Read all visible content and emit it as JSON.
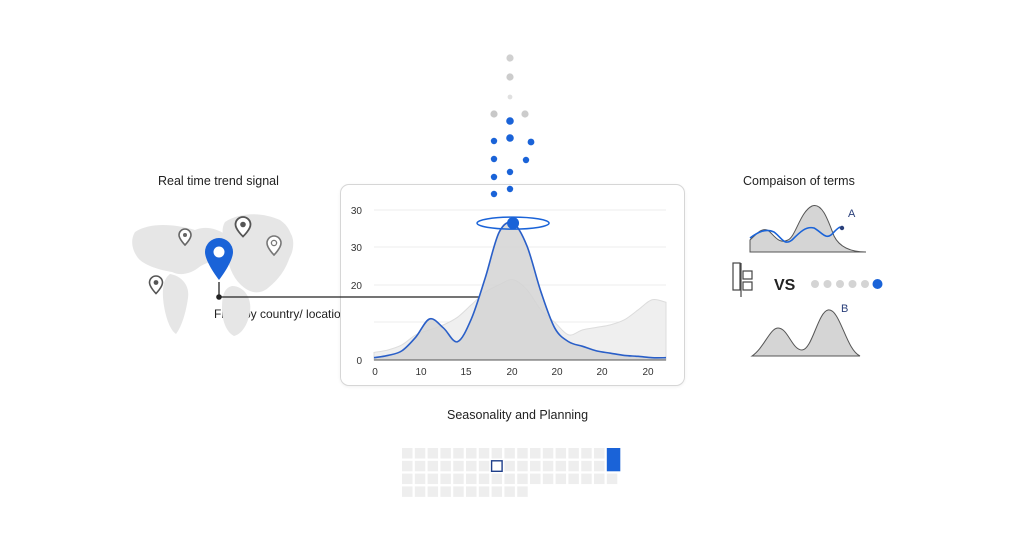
{
  "labels": {
    "realtime": "Real time trend signal",
    "filter": "Filter by country/ location",
    "compare": "Compaison of terms",
    "season": "Seasonality and Planning",
    "vs": "VS",
    "series_a": "A",
    "series_b": "B"
  },
  "colors": {
    "accent": "#1a63d8",
    "grey_fill": "#d8d8d8",
    "light_fill": "#ececec",
    "pin_grey": "#8a8a8a"
  },
  "icons": [
    "map-pin-icon",
    "world-map-icon",
    "column-chart-icon"
  ],
  "chart_data": {
    "type": "area",
    "title": "",
    "xlabel": "",
    "ylabel": "",
    "x_tick_labels": [
      "0",
      "10",
      "15",
      "20",
      "20",
      "20",
      "20"
    ],
    "y_tick_labels": [
      "0",
      "20",
      "30",
      "30"
    ],
    "grid": true,
    "series": [
      {
        "values": [
          [
            0,
            3
          ],
          [
            2,
            4
          ],
          [
            4,
            6
          ],
          [
            6,
            10
          ],
          [
            8,
            12
          ],
          [
            10,
            14
          ],
          [
            12,
            17
          ],
          [
            14,
            22
          ],
          [
            16,
            27
          ],
          [
            18,
            30
          ],
          [
            20,
            32
          ],
          [
            22,
            28
          ],
          [
            24,
            20
          ],
          [
            26,
            15
          ],
          [
            28,
            10
          ],
          [
            30,
            12
          ],
          [
            32,
            13
          ],
          [
            34,
            14
          ],
          [
            36,
            16
          ],
          [
            38,
            20
          ],
          [
            40,
            24
          ],
          [
            42,
            23
          ]
        ]
      },
      {
        "values": [
          [
            0,
            0.5
          ],
          [
            2,
            1
          ],
          [
            4,
            2
          ],
          [
            6,
            5
          ],
          [
            8,
            9
          ],
          [
            10,
            7
          ],
          [
            12,
            4
          ],
          [
            14,
            9
          ],
          [
            16,
            18
          ],
          [
            18,
            28
          ],
          [
            20,
            30
          ],
          [
            22,
            25
          ],
          [
            24,
            15
          ],
          [
            26,
            7
          ],
          [
            28,
            4
          ],
          [
            30,
            3
          ],
          [
            32,
            2
          ],
          [
            34,
            1.5
          ],
          [
            36,
            1
          ],
          [
            38,
            0.8
          ],
          [
            40,
            0.5
          ],
          [
            42,
            0.5
          ]
        ]
      }
    ],
    "highlight": {
      "x": 20,
      "y": 30
    }
  },
  "seasonality": {
    "rows": 4,
    "cols": 17,
    "highlight_outline": {
      "row": 1,
      "col": 7
    },
    "highlight_fill": {
      "row": 0,
      "col": 16
    }
  },
  "compare_dots": {
    "count": 6,
    "active_index": 5
  }
}
